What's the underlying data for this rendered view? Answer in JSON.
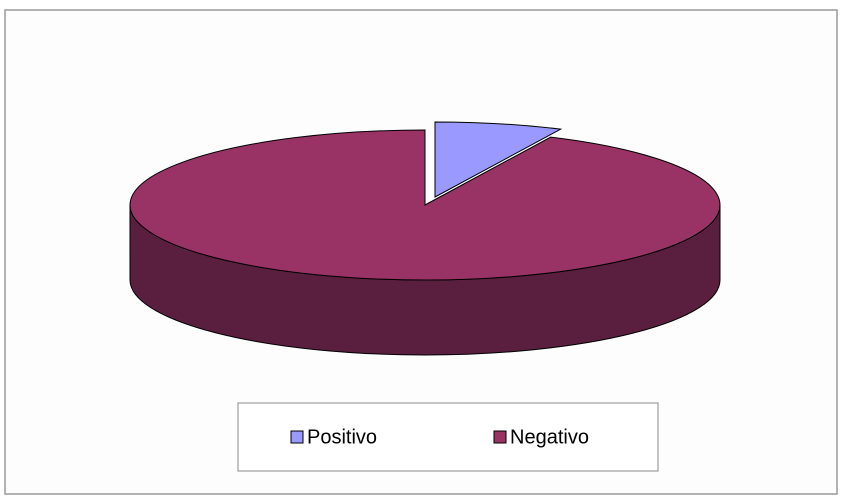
{
  "chart_data": {
    "type": "pie3d",
    "categories": [
      "Positivo",
      "Negativo"
    ],
    "values": [
      7,
      93
    ],
    "colors": [
      "#9999ff",
      "#993366"
    ],
    "side_colors": [
      "#5c5ca0",
      "#5a1f3e"
    ],
    "legend": "bottom"
  }
}
